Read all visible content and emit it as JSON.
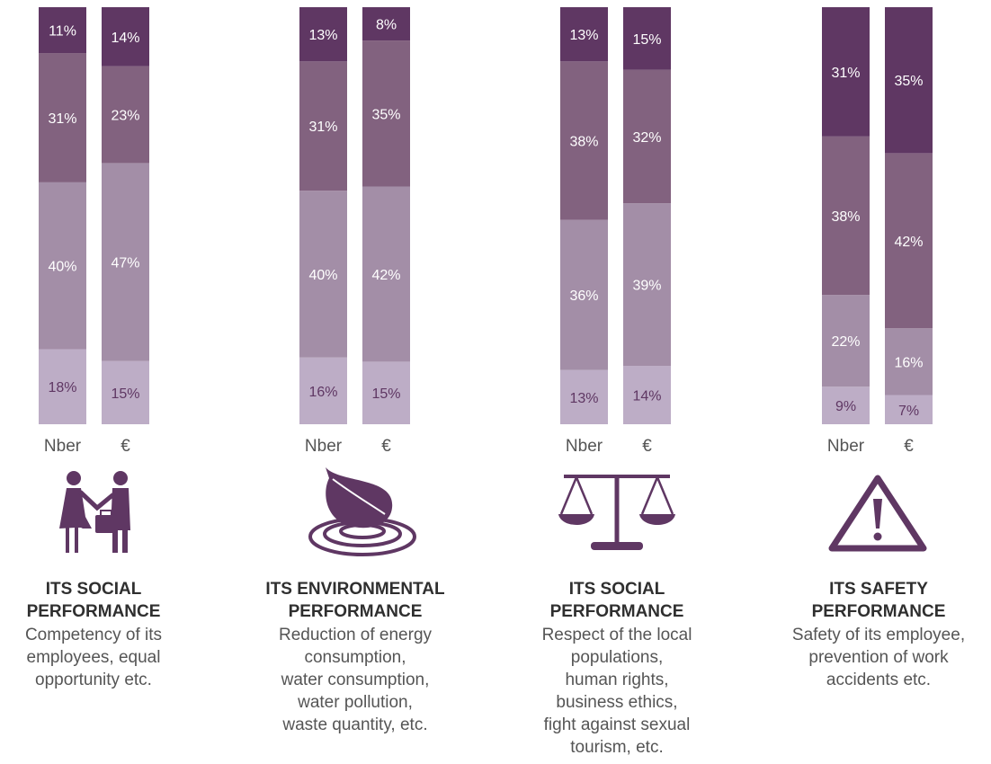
{
  "chart_data": {
    "type": "bar",
    "stacked": true,
    "normalized": true,
    "unit": "%",
    "series_colors": [
      "#bdadc6",
      "#a38ea7",
      "#82627f",
      "#5f3763"
    ],
    "label_colors": [
      "#5f3763",
      "#ffffff",
      "#ffffff",
      "#ffffff"
    ],
    "groups": [
      {
        "icon": "handshake-icon",
        "title": "ITS SOCIAL PERFORMANCE",
        "title_lines": [
          "ITS SOCIAL",
          "PERFORMANCE"
        ],
        "description_lines": [
          "Competency of its",
          "employees, equal",
          "opportunity etc."
        ],
        "bars": [
          {
            "label": "Nber",
            "values": [
              18,
              40,
              31,
              11
            ]
          },
          {
            "label": "€",
            "values": [
              15,
              47,
              23,
              14
            ]
          }
        ]
      },
      {
        "icon": "leaf-water-icon",
        "title": "ITS ENVIRONMENTAL PERFORMANCE",
        "title_lines": [
          "ITS ENVIRONMENTAL",
          "PERFORMANCE"
        ],
        "description_lines": [
          "Reduction of energy",
          "consumption,",
          "water consumption,",
          "water pollution,",
          "waste quantity, etc."
        ],
        "bars": [
          {
            "label": "Nber",
            "values": [
              16,
              40,
              31,
              13
            ]
          },
          {
            "label": "€",
            "values": [
              15,
              42,
              35,
              8
            ]
          }
        ]
      },
      {
        "icon": "scales-icon",
        "title": "ITS SOCIAL PERFORMANCE",
        "title_lines": [
          "ITS SOCIAL",
          "PERFORMANCE"
        ],
        "description_lines": [
          "Respect of the local",
          "populations,",
          "human rights,",
          "business ethics,",
          "fight against sexual",
          "tourism, etc."
        ],
        "bars": [
          {
            "label": "Nber",
            "values": [
              13,
              36,
              38,
              13
            ]
          },
          {
            "label": "€",
            "values": [
              14,
              39,
              32,
              15
            ]
          }
        ]
      },
      {
        "icon": "warning-icon",
        "title": "ITS SAFETY PERFORMANCE",
        "title_lines": [
          "ITS SAFETY",
          "PERFORMANCE"
        ],
        "description_lines": [
          "Safety of its employee,",
          "prevention of work",
          "accidents etc."
        ],
        "bars": [
          {
            "label": "Nber",
            "values": [
              9,
              22,
              38,
              31
            ]
          },
          {
            "label": "€",
            "values": [
              7,
              16,
              42,
              35
            ]
          }
        ]
      }
    ]
  }
}
